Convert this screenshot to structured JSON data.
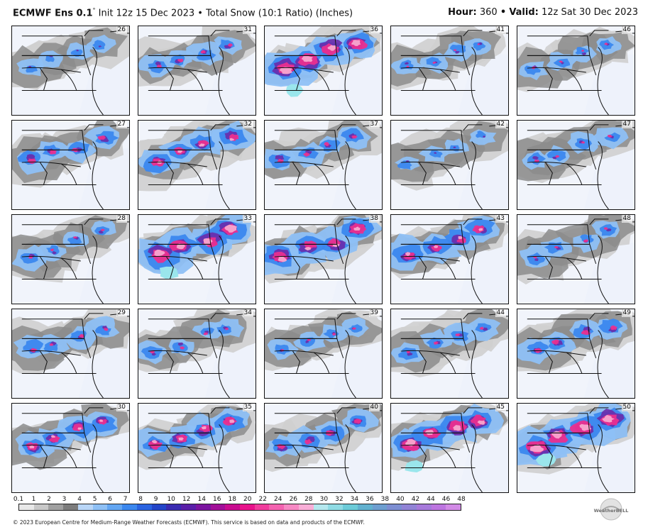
{
  "header": {
    "model": "ECMWF Ens 0.1",
    "degree": "°",
    "description": "Init 12z 15 Dec 2023 • Total Snow (10:1 Ratio) (Inches)",
    "hour_label": "Hour:",
    "hour_value": "360",
    "separator": "•",
    "valid_label": "Valid:",
    "valid_value": "12z Sat 30 Dec 2023"
  },
  "panels": [
    {
      "member": "26",
      "intensity": 0.35
    },
    {
      "member": "31",
      "intensity": 0.5
    },
    {
      "member": "36",
      "intensity": 0.95
    },
    {
      "member": "41",
      "intensity": 0.4
    },
    {
      "member": "46",
      "intensity": 0.4
    },
    {
      "member": "27",
      "intensity": 0.6
    },
    {
      "member": "32",
      "intensity": 0.75
    },
    {
      "member": "37",
      "intensity": 0.55
    },
    {
      "member": "42",
      "intensity": 0.35
    },
    {
      "member": "47",
      "intensity": 0.45
    },
    {
      "member": "28",
      "intensity": 0.45
    },
    {
      "member": "33",
      "intensity": 0.95
    },
    {
      "member": "38",
      "intensity": 0.85
    },
    {
      "member": "43",
      "intensity": 0.75
    },
    {
      "member": "48",
      "intensity": 0.45
    },
    {
      "member": "29",
      "intensity": 0.5
    },
    {
      "member": "34",
      "intensity": 0.45
    },
    {
      "member": "39",
      "intensity": 0.4
    },
    {
      "member": "44",
      "intensity": 0.45
    },
    {
      "member": "49",
      "intensity": 0.6
    },
    {
      "member": "30",
      "intensity": 0.7
    },
    {
      "member": "35",
      "intensity": 0.75
    },
    {
      "member": "40",
      "intensity": 0.6
    },
    {
      "member": "45",
      "intensity": 0.9
    },
    {
      "member": "50",
      "intensity": 1.0
    }
  ],
  "colorbar": {
    "labels": [
      "0.1",
      "1",
      "2",
      "3",
      "4",
      "5",
      "6",
      "7",
      "8",
      "9",
      "10",
      "12",
      "14",
      "16",
      "18",
      "20",
      "22",
      "24",
      "26",
      "28",
      "30",
      "32",
      "34",
      "36",
      "38",
      "40",
      "42",
      "44",
      "46",
      "48"
    ],
    "colors": [
      "#e8e8e8",
      "#c8c8c8",
      "#a0a0a0",
      "#7c7c7c",
      "#b9d6f7",
      "#8ec0f5",
      "#63a6f2",
      "#3b87ee",
      "#2a63e0",
      "#2345c8",
      "#3a2bb0",
      "#5a1fa8",
      "#7b159f",
      "#a10f98",
      "#c80c8f",
      "#e8138a",
      "#f03d9c",
      "#f463b0",
      "#f789c4",
      "#f9aed7",
      "#b5e8ee",
      "#8fdbe4",
      "#6ccbd8",
      "#62b1cf",
      "#6d9ed0",
      "#7d8ed2",
      "#9183d6",
      "#a77adb",
      "#bd75e0",
      "#d28ae6"
    ],
    "palette": {
      "gray_light": "#cfcfcf",
      "gray_dark": "#8c8c8c",
      "blue_light": "#8ec0f5",
      "blue": "#3b87ee",
      "purple": "#6a2aaa",
      "magenta": "#ea2f8f",
      "pink": "#f7a6cf",
      "cyan": "#9ae6ec"
    }
  },
  "logo": {
    "text": "WeatherBELL"
  },
  "footer": {
    "copyright": "© 2023 European Centre for Medium-Range Weather Forecasts (ECMWF). This service is based on data and products of the ECMWF."
  }
}
